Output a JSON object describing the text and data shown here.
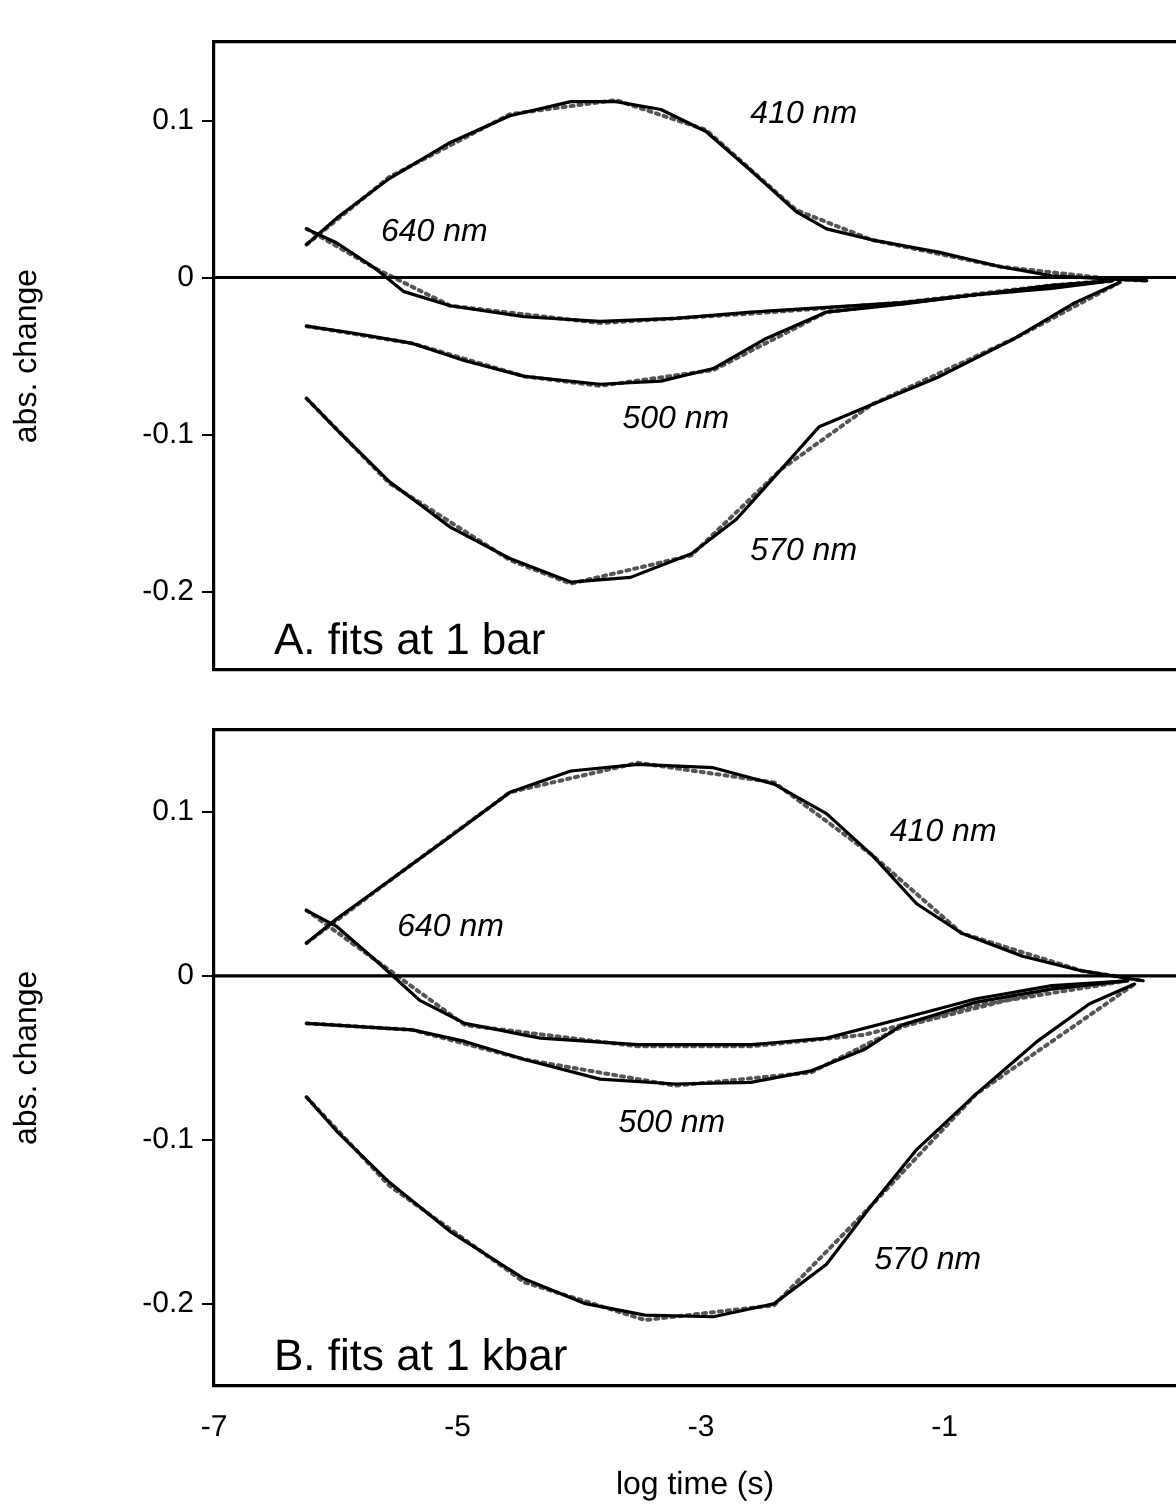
{
  "chart_data": [
    {
      "type": "line",
      "ylabel": "abs. change",
      "xlim": [
        -7,
        0.9
      ],
      "ylim": [
        -0.25,
        0.15
      ],
      "xticks": [
        -7,
        -5,
        -3,
        -1
      ],
      "yticks": [
        0.1,
        0,
        -0.1,
        -0.2
      ],
      "tick_labels": "y",
      "grid": false,
      "legend": false,
      "marker": "none",
      "ref_lines": [
        {
          "axis": "y",
          "value": 0
        }
      ],
      "annotations": [
        "A. fits at 1 bar"
      ],
      "series": [
        {
          "name": "410 nm",
          "color": "#000000",
          "line_style": "solid",
          "x": [
            -6.24,
            -5.99,
            -5.56,
            -5.06,
            -4.57,
            -4.07,
            -3.7,
            -3.33,
            -2.96,
            -2.59,
            -2.22,
            -1.97,
            -1.6,
            -1.04,
            -0.55,
            -0.12,
            0.38,
            0.66
          ],
          "values": [
            0.021,
            0.038,
            0.063,
            0.086,
            0.103,
            0.112,
            0.112,
            0.107,
            0.093,
            0.068,
            0.042,
            0.031,
            0.024,
            0.016,
            0.007,
            0.001,
            -0.001,
            -0.002
          ]
        },
        {
          "name": "640 nm",
          "color": "#000000",
          "line_style": "solid",
          "x": [
            -6.24,
            -5.99,
            -5.68,
            -5.44,
            -5.06,
            -4.45,
            -3.83,
            -3.21,
            -2.59,
            -1.97,
            -1.35,
            -0.74,
            -0.12,
            0.38
          ],
          "values": [
            0.031,
            0.022,
            0.006,
            -0.009,
            -0.018,
            -0.025,
            -0.028,
            -0.026,
            -0.022,
            -0.019,
            -0.016,
            -0.011,
            -0.005,
            -0.002
          ]
        },
        {
          "name": "500 nm",
          "color": "#000000",
          "line_style": "solid",
          "x": [
            -6.24,
            -5.81,
            -5.37,
            -4.94,
            -4.45,
            -3.83,
            -3.33,
            -2.9,
            -2.47,
            -1.97,
            -1.35,
            -0.74,
            -0.12,
            0.38
          ],
          "values": [
            -0.031,
            -0.036,
            -0.042,
            -0.053,
            -0.063,
            -0.068,
            -0.066,
            -0.058,
            -0.039,
            -0.022,
            -0.017,
            -0.011,
            -0.007,
            -0.002
          ]
        },
        {
          "name": "570 nm",
          "color": "#000000",
          "line_style": "solid",
          "x": [
            -6.24,
            -5.99,
            -5.56,
            -5.06,
            -4.57,
            -4.07,
            -3.58,
            -3.08,
            -2.71,
            -2.34,
            -2.03,
            -1.6,
            -1.04,
            -0.43,
            0.07,
            0.44
          ],
          "values": [
            -0.077,
            -0.097,
            -0.13,
            -0.159,
            -0.179,
            -0.194,
            -0.191,
            -0.176,
            -0.154,
            -0.122,
            -0.095,
            -0.081,
            -0.063,
            -0.039,
            -0.016,
            -0.003
          ]
        },
        {
          "color": "#555555",
          "line_style": "dotted",
          "x": [
            -6.24,
            -5.56,
            -4.57,
            -3.7,
            -2.96,
            -2.22,
            -1.6,
            -0.55,
            0.38,
            0.66
          ],
          "values": [
            0.021,
            0.064,
            0.104,
            0.113,
            0.094,
            0.043,
            0.024,
            0.007,
            -0.001,
            -0.002
          ]
        },
        {
          "color": "#555555",
          "line_style": "dotted",
          "x": [
            -6.24,
            -5.68,
            -5.06,
            -3.83,
            -2.59,
            -1.35,
            -0.12,
            0.38
          ],
          "values": [
            0.031,
            0.006,
            -0.018,
            -0.029,
            -0.023,
            -0.016,
            -0.005,
            -0.002
          ]
        },
        {
          "color": "#555555",
          "line_style": "dotted",
          "x": [
            -6.24,
            -5.37,
            -4.45,
            -3.83,
            -2.9,
            -1.97,
            -0.74,
            0.38
          ],
          "values": [
            -0.031,
            -0.042,
            -0.063,
            -0.069,
            -0.059,
            -0.022,
            -0.011,
            -0.002
          ]
        },
        {
          "color": "#555555",
          "line_style": "dotted",
          "x": [
            -6.24,
            -5.56,
            -4.57,
            -4.07,
            -3.08,
            -2.34,
            -1.6,
            -0.43,
            0.44
          ],
          "values": [
            -0.077,
            -0.131,
            -0.18,
            -0.195,
            -0.177,
            -0.122,
            -0.081,
            -0.039,
            -0.003
          ]
        }
      ]
    },
    {
      "type": "line",
      "xlabel": "log time (s)",
      "ylabel": "abs. change",
      "xlim": [
        -7,
        0.9
      ],
      "ylim": [
        -0.25,
        0.15
      ],
      "xticks": [
        -7,
        -5,
        -3,
        -1
      ],
      "yticks": [
        0.1,
        0,
        -0.1,
        -0.2
      ],
      "grid": false,
      "legend": false,
      "marker": "none",
      "ref_lines": [
        {
          "axis": "y",
          "value": 0
        }
      ],
      "annotations": [
        "B. fits at 1 kbar"
      ],
      "series": [
        {
          "name": "410 nm",
          "color": "#000000",
          "line_style": "solid",
          "x": [
            -6.24,
            -5.99,
            -5.56,
            -5.06,
            -4.57,
            -4.07,
            -3.52,
            -2.9,
            -2.4,
            -1.97,
            -1.6,
            -1.23,
            -0.86,
            -0.36,
            0.13,
            0.63
          ],
          "values": [
            0.02,
            0.035,
            0.058,
            0.085,
            0.112,
            0.125,
            0.129,
            0.127,
            0.117,
            0.099,
            0.074,
            0.044,
            0.026,
            0.012,
            0.003,
            -0.003
          ]
        },
        {
          "name": "640 nm",
          "color": "#000000",
          "line_style": "solid",
          "x": [
            -6.24,
            -5.99,
            -5.68,
            -5.31,
            -4.94,
            -4.32,
            -3.52,
            -2.59,
            -1.97,
            -1.35,
            -0.74,
            -0.12,
            0.5
          ],
          "values": [
            0.04,
            0.03,
            0.01,
            -0.015,
            -0.029,
            -0.038,
            -0.042,
            -0.042,
            -0.038,
            -0.026,
            -0.014,
            -0.006,
            -0.003
          ]
        },
        {
          "name": "500 nm",
          "color": "#000000",
          "line_style": "solid",
          "x": [
            -6.24,
            -5.81,
            -5.37,
            -4.94,
            -4.45,
            -3.83,
            -3.21,
            -2.59,
            -2.1,
            -1.66,
            -1.35,
            -0.74,
            -0.12,
            0.5
          ],
          "values": [
            -0.029,
            -0.031,
            -0.033,
            -0.04,
            -0.051,
            -0.063,
            -0.066,
            -0.065,
            -0.058,
            -0.045,
            -0.03,
            -0.016,
            -0.008,
            -0.003
          ]
        },
        {
          "name": "570 nm",
          "color": "#000000",
          "line_style": "solid",
          "x": [
            -6.24,
            -5.99,
            -5.56,
            -5.06,
            -4.45,
            -3.95,
            -3.46,
            -2.9,
            -2.4,
            -1.97,
            -1.6,
            -1.23,
            -0.74,
            -0.24,
            0.19,
            0.56
          ],
          "values": [
            -0.074,
            -0.095,
            -0.126,
            -0.156,
            -0.185,
            -0.2,
            -0.207,
            -0.208,
            -0.2,
            -0.176,
            -0.14,
            -0.106,
            -0.072,
            -0.04,
            -0.017,
            -0.005
          ]
        },
        {
          "color": "#555555",
          "line_style": "dotted",
          "x": [
            -6.24,
            -5.56,
            -4.57,
            -3.52,
            -2.4,
            -1.6,
            -0.86,
            0.13,
            0.63
          ],
          "values": [
            0.02,
            0.058,
            0.112,
            0.13,
            0.118,
            0.074,
            0.026,
            0.003,
            -0.003
          ]
        },
        {
          "color": "#555555",
          "line_style": "dotted",
          "x": [
            -6.24,
            -5.68,
            -4.94,
            -3.52,
            -2.59,
            -1.66,
            -0.74,
            0.5
          ],
          "values": [
            0.04,
            0.01,
            -0.03,
            -0.043,
            -0.043,
            -0.036,
            -0.018,
            -0.003
          ]
        },
        {
          "color": "#555555",
          "line_style": "dotted",
          "x": [
            -6.24,
            -5.37,
            -4.45,
            -3.21,
            -2.1,
            -1.35,
            -0.12,
            0.5
          ],
          "values": [
            -0.029,
            -0.033,
            -0.051,
            -0.067,
            -0.059,
            -0.031,
            -0.008,
            -0.003
          ]
        },
        {
          "color": "#555555",
          "line_style": "dotted",
          "x": [
            -6.24,
            -5.56,
            -4.45,
            -3.46,
            -2.4,
            -1.6,
            -0.74,
            0.56
          ],
          "values": [
            -0.074,
            -0.128,
            -0.187,
            -0.21,
            -0.201,
            -0.14,
            -0.072,
            -0.005
          ]
        }
      ]
    }
  ]
}
